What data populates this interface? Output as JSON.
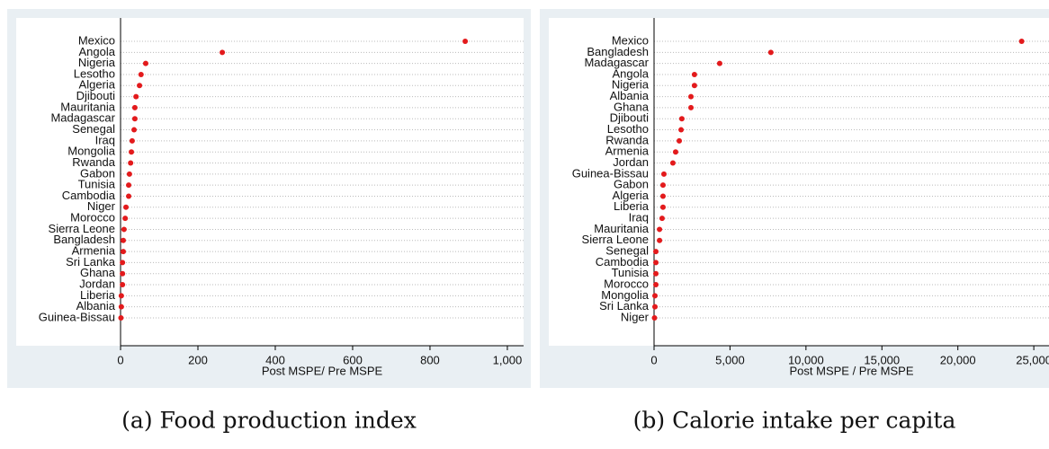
{
  "chart_data": [
    {
      "type": "dot",
      "caption": "(a) Food production index",
      "xlabel": "Post MSPE/ Pre MSPE",
      "color": "#e31a1c",
      "categories": [
        "Mexico",
        "Angola",
        "Nigeria",
        "Lesotho",
        "Algeria",
        "Djibouti",
        "Mauritania",
        "Madagascar",
        "Senegal",
        "Iraq",
        "Mongolia",
        "Rwanda",
        "Gabon",
        "Tunisia",
        "Cambodia",
        "Niger",
        "Morocco",
        "Sierra Leone",
        "Bangladesh",
        "Armenia",
        "Sri Lanka",
        "Ghana",
        "Jordan",
        "Liberia",
        "Albania",
        "Guinea-Bissau"
      ],
      "values": [
        891,
        263,
        65,
        53,
        49,
        40,
        37,
        37,
        35,
        30,
        28,
        26,
        23,
        21,
        21,
        14,
        12,
        9,
        7,
        7,
        5,
        5,
        5,
        2,
        2,
        1
      ],
      "xlim": [
        0,
        1042
      ],
      "xticks": [
        0,
        200,
        400,
        600,
        800,
        {
          "value": 1000,
          "label": "1,000"
        }
      ]
    },
    {
      "type": "dot",
      "caption": "(b) Calorie intake per capita",
      "xlabel": "Post MSPE / Pre MSPE",
      "color": "#e31a1c",
      "categories": [
        "Mexico",
        "Bangladesh",
        "Madagascar",
        "Angola",
        "Nigeria",
        "Albania",
        "Ghana",
        "Djibouti",
        "Lesotho",
        "Rwanda",
        "Armenia",
        "Jordan",
        "Guinea-Bissau",
        "Gabon",
        "Algeria",
        "Liberia",
        "Iraq",
        "Mauritania",
        "Sierra Leone",
        "Senegal",
        "Cambodia",
        "Tunisia",
        "Morocco",
        "Mongolia",
        "Sri Lanka",
        "Niger"
      ],
      "values": [
        24200,
        7690,
        4320,
        2660,
        2660,
        2430,
        2430,
        1830,
        1780,
        1660,
        1420,
        1240,
        650,
        590,
        590,
        590,
        530,
        360,
        360,
        120,
        120,
        120,
        120,
        60,
        60,
        30
      ],
      "xlim": [
        0,
        26000
      ],
      "xticks": [
        0,
        {
          "value": 5000,
          "label": "5,000"
        },
        {
          "value": 10000,
          "label": "10,000"
        },
        {
          "value": 15000,
          "label": "15,000"
        },
        {
          "value": 20000,
          "label": "20,000"
        },
        {
          "value": 25000,
          "label": "25,000"
        }
      ]
    }
  ]
}
